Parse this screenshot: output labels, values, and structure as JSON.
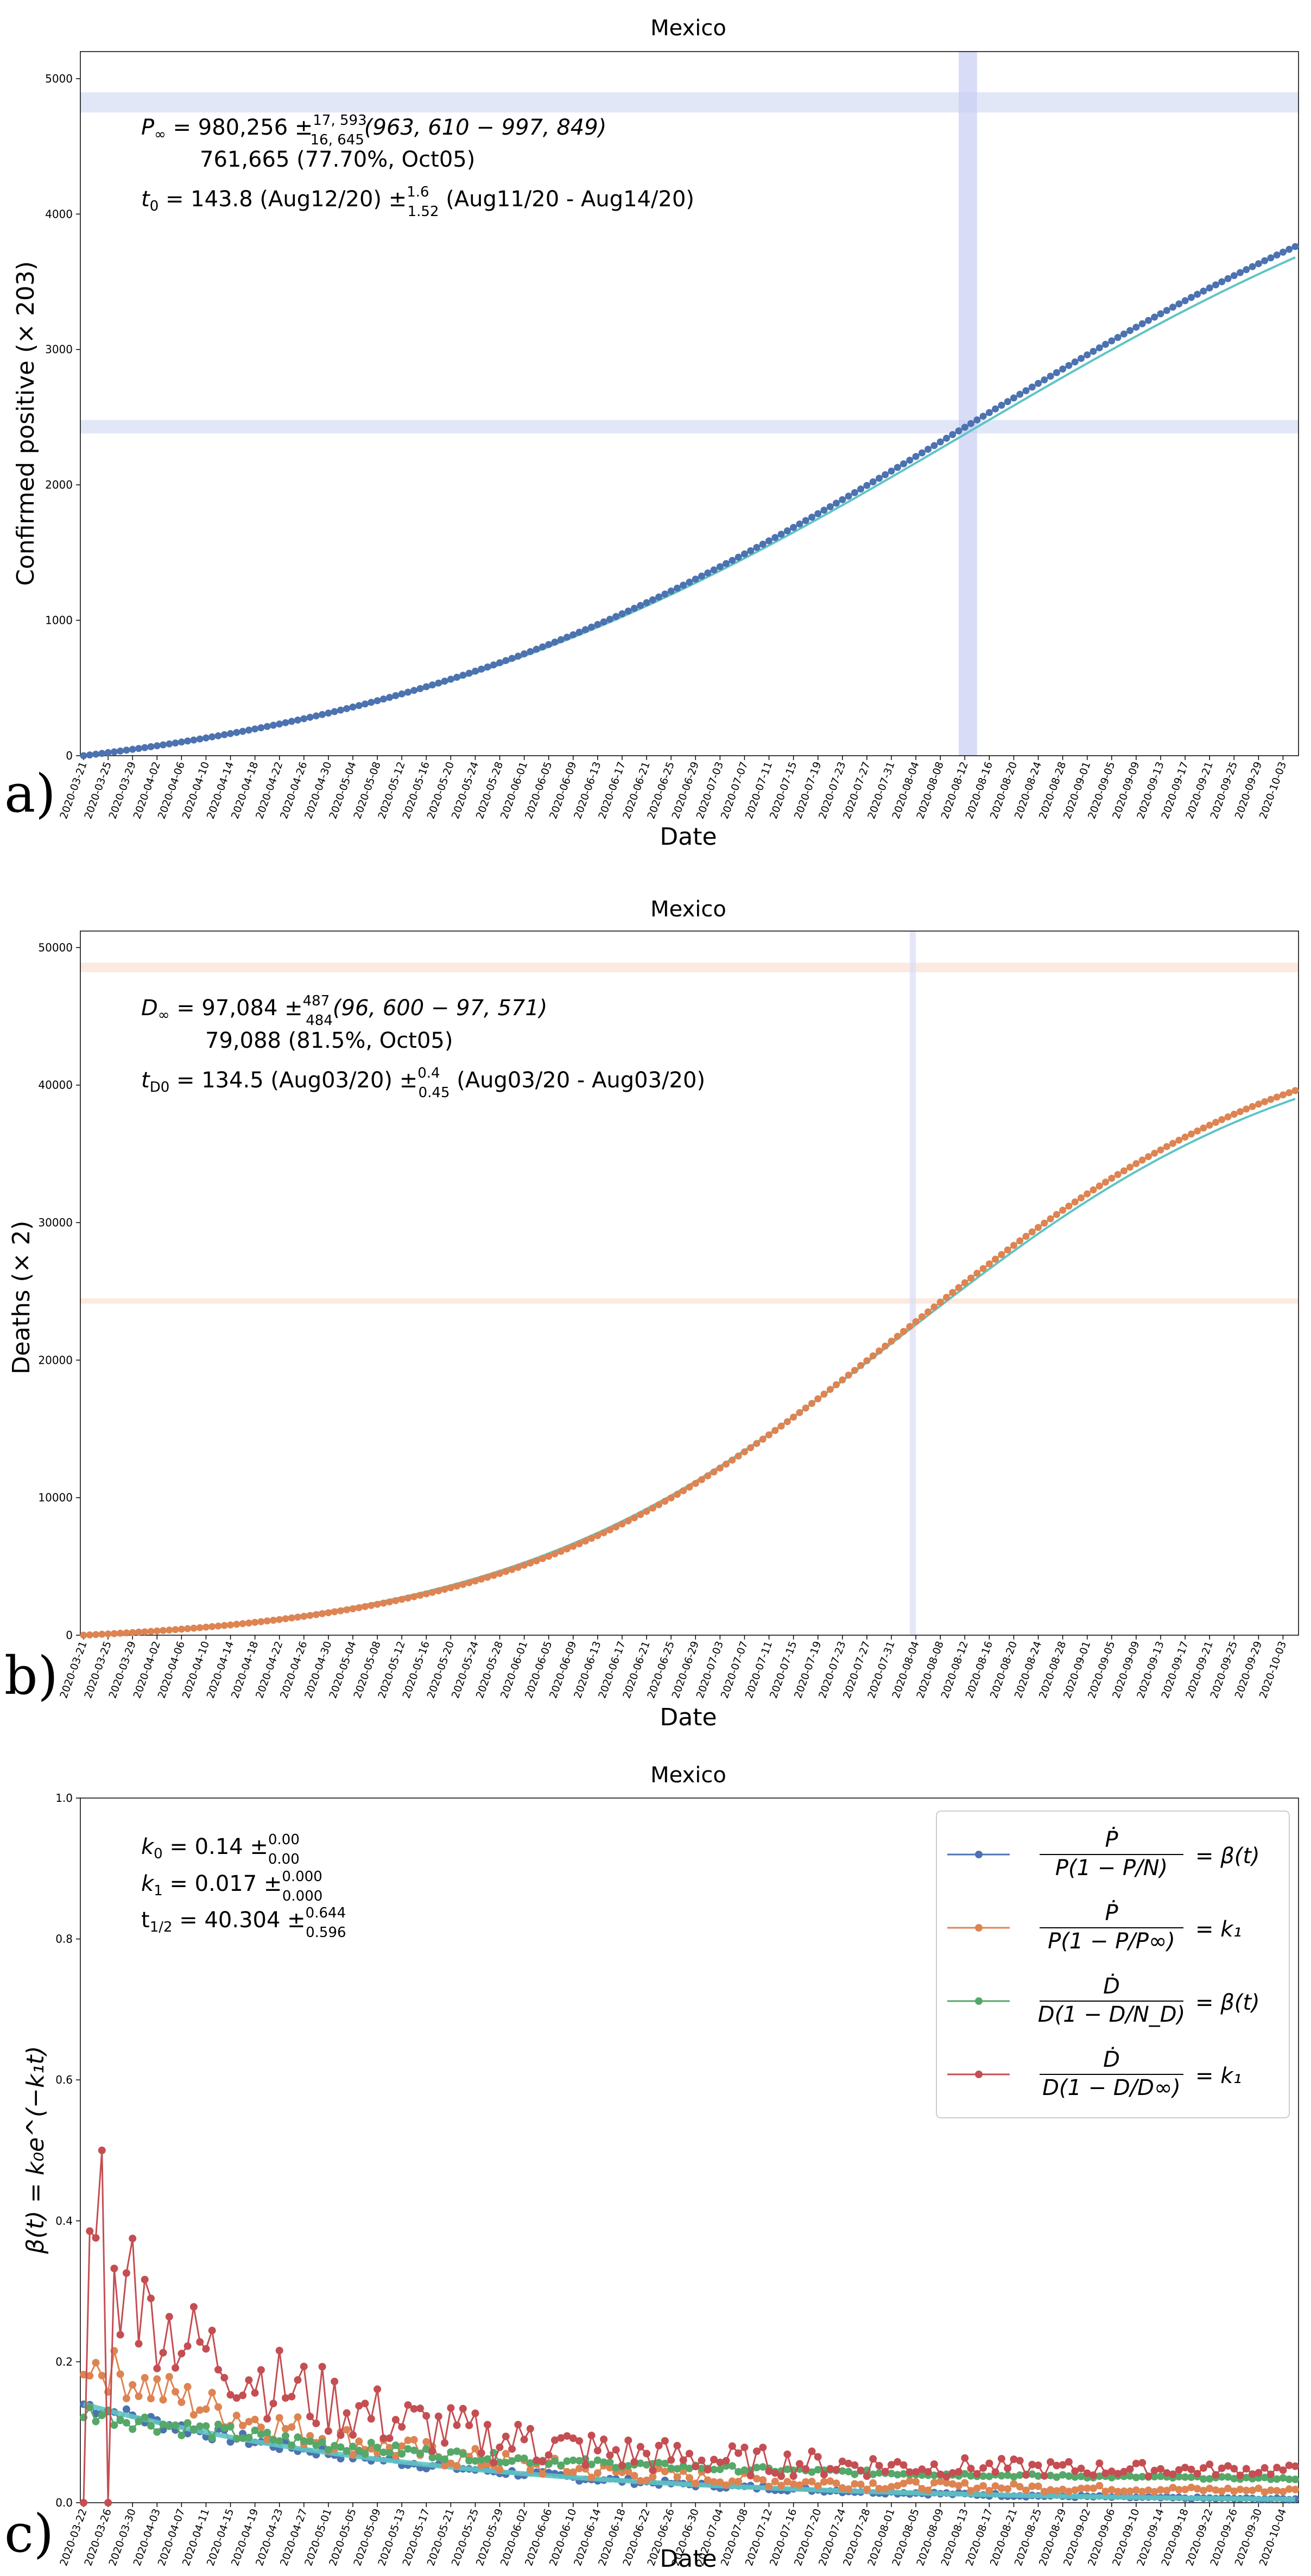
{
  "chart_data": [
    {
      "type": "scatter",
      "panel_label": "a)",
      "title": "Mexico",
      "xlabel": "Date",
      "ylabel": "Confirmed positive (× 203)",
      "ylim": [
        0,
        5200
      ],
      "yticks": [
        0,
        1000,
        2000,
        3000,
        4000,
        5000
      ],
      "ytick_labels": [
        "0",
        "1000",
        "2000",
        "3000",
        "4000",
        "5000"
      ],
      "x_start": "2020-03-21",
      "x_end": "2020-10-05",
      "xtick_labels": [
        "2020-03-21",
        "2020-03-25",
        "2020-03-29",
        "2020-04-02",
        "2020-04-06",
        "2020-04-10",
        "2020-04-14",
        "2020-04-18",
        "2020-04-22",
        "2020-04-26",
        "2020-04-30",
        "2020-05-04",
        "2020-05-08",
        "2020-05-12",
        "2020-05-16",
        "2020-05-20",
        "2020-05-24",
        "2020-05-28",
        "2020-06-01",
        "2020-06-05",
        "2020-06-09",
        "2020-06-13",
        "2020-06-17",
        "2020-06-21",
        "2020-06-25",
        "2020-06-29",
        "2020-07-03",
        "2020-07-07",
        "2020-07-11",
        "2020-07-15",
        "2020-07-19",
        "2020-07-23",
        "2020-07-27",
        "2020-07-31",
        "2020-08-04",
        "2020-08-08",
        "2020-08-12",
        "2020-08-16",
        "2020-08-20",
        "2020-08-24",
        "2020-08-28",
        "2020-09-01",
        "2020-09-05",
        "2020-09-09",
        "2020-09-13",
        "2020-09-17",
        "2020-09-21",
        "2020-09-25",
        "2020-09-29",
        "2020-10-03"
      ],
      "vband_dates": [
        "2020-08-11",
        "2020-08-14"
      ],
      "hbands": [
        [
          4750,
          4900
        ],
        [
          2380,
          2480
        ]
      ],
      "band_color": "#dde3f7",
      "series": [
        {
          "name": "",
          "role": "data",
          "color": "#4c72b0",
          "logistic": {
            "K": 4828,
            "t0_day": 143.8,
            "k": 0.02
          },
          "end_value": 3760
        },
        {
          "name": "",
          "role": "fit",
          "color": "#5ec4c4",
          "logistic": {
            "K": 4800,
            "t0_day": 143.8,
            "k": 0.02
          },
          "end_value": 3680
        }
      ],
      "annotations": {
        "line1_sym": "P",
        "line1_sub": "∞",
        "line1_val": " = 980,256 ±",
        "line1_sup": "17, 593",
        "line1_lo": "16, 645",
        "line1_range": "(963, 610 − 997, 849)",
        "line2": "761,665 (77.70%, Oct05)",
        "line3_sym": "t",
        "line3_sub": "0",
        "line3_val": " = 143.8 (Aug12/20) ±",
        "line3_sup": "1.6",
        "line3_lo": "1.52",
        "line3_range": " (Aug11/20 - Aug14/20)"
      }
    },
    {
      "type": "scatter",
      "panel_label": "b)",
      "title": "Mexico",
      "xlabel": "Date",
      "ylabel": "Deaths (× 2)",
      "ylim": [
        0,
        51200
      ],
      "yticks": [
        0,
        10000,
        20000,
        30000,
        40000,
        50000
      ],
      "ytick_labels": [
        "0",
        "10000",
        "20000",
        "30000",
        "40000",
        "50000"
      ],
      "x_start": "2020-03-21",
      "x_end": "2020-10-05",
      "xtick_labels": [
        "2020-03-21",
        "2020-03-25",
        "2020-03-29",
        "2020-04-02",
        "2020-04-06",
        "2020-04-10",
        "2020-04-14",
        "2020-04-18",
        "2020-04-22",
        "2020-04-26",
        "2020-04-30",
        "2020-05-04",
        "2020-05-08",
        "2020-05-12",
        "2020-05-16",
        "2020-05-20",
        "2020-05-24",
        "2020-05-28",
        "2020-06-01",
        "2020-06-05",
        "2020-06-09",
        "2020-06-13",
        "2020-06-17",
        "2020-06-21",
        "2020-06-25",
        "2020-06-29",
        "2020-07-03",
        "2020-07-07",
        "2020-07-11",
        "2020-07-15",
        "2020-07-19",
        "2020-07-23",
        "2020-07-27",
        "2020-07-31",
        "2020-08-04",
        "2020-08-08",
        "2020-08-12",
        "2020-08-16",
        "2020-08-20",
        "2020-08-24",
        "2020-08-28",
        "2020-09-01",
        "2020-09-05",
        "2020-09-09",
        "2020-09-13",
        "2020-09-17",
        "2020-09-21",
        "2020-09-25",
        "2020-09-29",
        "2020-10-03"
      ],
      "vband_dates": [
        "2020-08-03",
        "2020-08-04"
      ],
      "hbands": [
        [
          48200,
          48900
        ],
        [
          24100,
          24500
        ]
      ],
      "band_color": "#fbe6dc",
      "vband_color": "#dcdcf7",
      "series": [
        {
          "name": "",
          "role": "data",
          "color": "#dd8452",
          "logistic": {
            "K": 48540,
            "t0_day": 134.5,
            "k": 0.031
          },
          "end_value": 39600
        },
        {
          "name": "",
          "role": "fit",
          "color": "#5ec4c4",
          "logistic": {
            "K": 48540,
            "t0_day": 134.5,
            "k": 0.03
          },
          "end_value": 39000
        }
      ],
      "annotations": {
        "line1_sym": "D",
        "line1_sub": "∞",
        "line1_val": " = 97,084 ±",
        "line1_sup": "487",
        "line1_lo": "484",
        "line1_range": "(96, 600 − 97, 571)",
        "line2": "79,088 (81.5%, Oct05)",
        "line3_sym": "t",
        "line3_sub": "D0",
        "line3_val": " = 134.5 (Aug03/20) ±",
        "line3_sup": "0.4",
        "line3_lo": "0.45",
        "line3_range": " (Aug03/20 - Aug03/20)"
      }
    },
    {
      "type": "line",
      "panel_label": "c)",
      "title": "Mexico",
      "xlabel": "Date",
      "ylabel": "β(t) = k₀e^(−k₁t)",
      "ylim": [
        0.0,
        1.0
      ],
      "yticks": [
        0.0,
        0.2,
        0.4,
        0.6,
        0.8,
        1.0
      ],
      "ytick_labels": [
        "0.0",
        "0.2",
        "0.4",
        "0.6",
        "0.8",
        "1.0"
      ],
      "x_start": "2020-03-22",
      "x_end": "2020-10-06",
      "xtick_labels": [
        "2020-03-22",
        "2020-03-26",
        "2020-03-30",
        "2020-04-03",
        "2020-04-07",
        "2020-04-11",
        "2020-04-15",
        "2020-04-19",
        "2020-04-23",
        "2020-04-27",
        "2020-05-01",
        "2020-05-05",
        "2020-05-09",
        "2020-05-13",
        "2020-05-17",
        "2020-05-21",
        "2020-05-25",
        "2020-05-29",
        "2020-06-02",
        "2020-06-06",
        "2020-06-10",
        "2020-06-14",
        "2020-06-18",
        "2020-06-22",
        "2020-06-26",
        "2020-06-30",
        "2020-07-04",
        "2020-07-08",
        "2020-07-12",
        "2020-07-16",
        "2020-07-20",
        "2020-07-24",
        "2020-07-28",
        "2020-08-01",
        "2020-08-05",
        "2020-08-09",
        "2020-08-13",
        "2020-08-17",
        "2020-08-21",
        "2020-08-25",
        "2020-08-29",
        "2020-09-02",
        "2020-09-06",
        "2020-09-10",
        "2020-09-14",
        "2020-09-18",
        "2020-09-22",
        "2020-09-26",
        "2020-09-30",
        "2020-10-04"
      ],
      "fit": {
        "k0": 0.14,
        "k1": 0.017,
        "color": "#5ec4c4"
      },
      "series": [
        {
          "name": "Ṗ / (P(1 − P/N)) = β(t)",
          "color": "#4c72b0",
          "decay_start": 0.14,
          "decay_k": 0.017,
          "noise": 0.012
        },
        {
          "name": "Ṗ / (P(1 − P/P∞)) = k₁",
          "color": "#dd8452",
          "decay_start": 0.19,
          "decay_k": 0.022,
          "noise": 0.035
        },
        {
          "name": "Ḋ / (D(1 − D/N_D)) = β(t)",
          "color": "#55a868",
          "decay_start": 0.1,
          "decay_k": 0.016,
          "noise": 0.015
        },
        {
          "name": "Ḋ / (D(1 − D/D∞)) = k₁",
          "color": "#c44e52",
          "decay_start": 0.3,
          "decay_k": 0.028,
          "noise": 0.08
        }
      ],
      "annotations": {
        "k0_label": "k",
        "k0_sub": "0",
        "k0_val": " = 0.14 ±",
        "k0_sup": "0.00",
        "k0_lo": "0.00",
        "k1_label": "k",
        "k1_sub": "1",
        "k1_val": " = 0.017 ±",
        "k1_sup": "0.000",
        "k1_lo": "0.000",
        "th_label": "t",
        "th_sub": "1/2",
        "th_val": " = 40.304 ±",
        "th_sup": "0.644",
        "th_lo": "0.596"
      },
      "legend": {
        "entries": [
          {
            "num": "Ṗ",
            "den": "P(1 − P/N)",
            "rhs": "= β(t)"
          },
          {
            "num": "Ṗ",
            "den": "P(1 − P/P∞)",
            "rhs": "= k₁"
          },
          {
            "num": "Ḋ",
            "den": "D(1 − D/N_D)",
            "rhs": "= β(t)"
          },
          {
            "num": "Ḋ",
            "den": "D(1 − D/D∞)",
            "rhs": "= k₁"
          }
        ],
        "position": "top-right"
      }
    }
  ]
}
